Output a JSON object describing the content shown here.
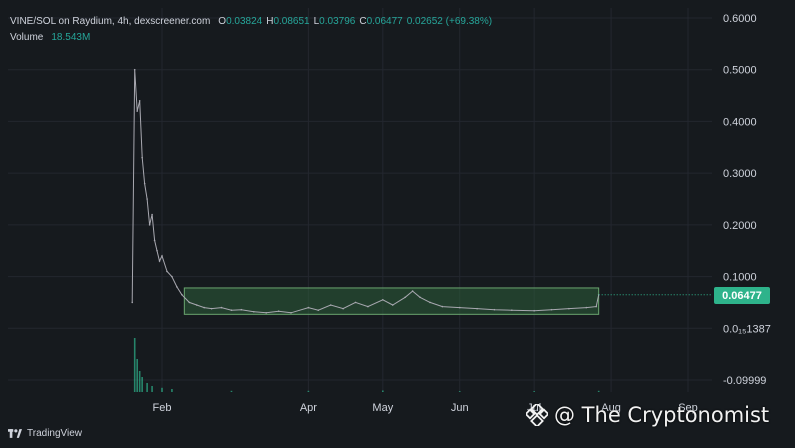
{
  "header": {
    "symbol": "VINE/SOL on Raydium, 4h, dexscreener.com",
    "ohlc": [
      {
        "key": "O",
        "value": "0.03824"
      },
      {
        "key": "H",
        "value": "0.08651"
      },
      {
        "key": "L",
        "value": "0.03796"
      },
      {
        "key": "C",
        "value": "0.06477"
      }
    ],
    "change": "0.02652 (+69.38%)",
    "volume_label": "Volume",
    "volume_value": "18.543M"
  },
  "last_price_tag": "0.06477",
  "branding": {
    "tradingview": "TradingView",
    "watermark": "@ The Cryptonomist"
  },
  "colors": {
    "background": "#161a1e",
    "grid": "#23272f",
    "price_line": "#a8a8b0",
    "range_box_fill": "#2e5e3a",
    "range_box_border": "#6aa56f",
    "last_price": "#2eb38b",
    "volume": "#2eb38b"
  },
  "chart_data": {
    "type": "line",
    "y_ticks": [
      "0.6000",
      "0.5000",
      "0.4000",
      "0.3000",
      "0.2000",
      "0.1000",
      "0.0₁₅1387",
      "-0.09999"
    ],
    "x_ticks": [
      "Feb",
      "Apr",
      "May",
      "Jun",
      "Jul",
      "Aug",
      "Sep"
    ],
    "ylim": [
      -0.11,
      0.62
    ],
    "grid": true,
    "series": [
      {
        "x": [
          "Jan 20",
          "Jan 21",
          "Jan 22",
          "Jan 23",
          "Jan 24",
          "Jan 25",
          "Jan 26",
          "Jan 27",
          "Jan 28",
          "Jan 29",
          "Jan 30",
          "Jan 31",
          "Feb 1",
          "Feb 3",
          "Feb 5",
          "Feb 7",
          "Feb 9",
          "Feb 12",
          "Feb 15",
          "Feb 18",
          "Feb 21",
          "Feb 25",
          "Mar 1",
          "Mar 5",
          "Mar 10",
          "Mar 15",
          "Mar 20",
          "Mar 25",
          "Apr 1",
          "Apr 5",
          "Apr 10",
          "Apr 15",
          "Apr 20",
          "Apr 25",
          "May 1",
          "May 5",
          "May 10",
          "May 13",
          "May 16",
          "May 20",
          "May 25",
          "Jun 1",
          "Jun 8",
          "Jun 15",
          "Jun 22",
          "Jul 1",
          "Jul 8",
          "Jul 15",
          "Jul 22",
          "Jul 26",
          "Jul 27"
        ],
        "values": [
          0.05,
          0.5,
          0.42,
          0.44,
          0.33,
          0.28,
          0.25,
          0.2,
          0.22,
          0.17,
          0.15,
          0.13,
          0.14,
          0.11,
          0.1,
          0.08,
          0.065,
          0.05,
          0.045,
          0.04,
          0.038,
          0.04,
          0.035,
          0.036,
          0.032,
          0.03,
          0.033,
          0.03,
          0.04,
          0.035,
          0.045,
          0.038,
          0.05,
          0.042,
          0.055,
          0.045,
          0.06,
          0.072,
          0.06,
          0.05,
          0.042,
          0.04,
          0.038,
          0.036,
          0.035,
          0.034,
          0.036,
          0.038,
          0.04,
          0.042,
          0.06477
        ]
      }
    ],
    "range_box": {
      "x_start": "Feb 10",
      "x_end": "Jul 27",
      "y_top": 0.078,
      "y_bottom": 0.027
    },
    "volume": {
      "label": "Volume",
      "x": [
        "Jan 21",
        "Jan 22",
        "Jan 23",
        "Jan 24",
        "Jan 26",
        "Jan 28",
        "Feb 1",
        "Feb 5",
        "Mar 1",
        "Apr 1",
        "May 1",
        "Jun 1",
        "Jul 1",
        "Jul 27"
      ],
      "values": [
        0.9,
        0.55,
        0.35,
        0.25,
        0.15,
        0.1,
        0.07,
        0.05,
        0.02,
        0.02,
        0.025,
        0.015,
        0.015,
        0.02
      ]
    }
  }
}
